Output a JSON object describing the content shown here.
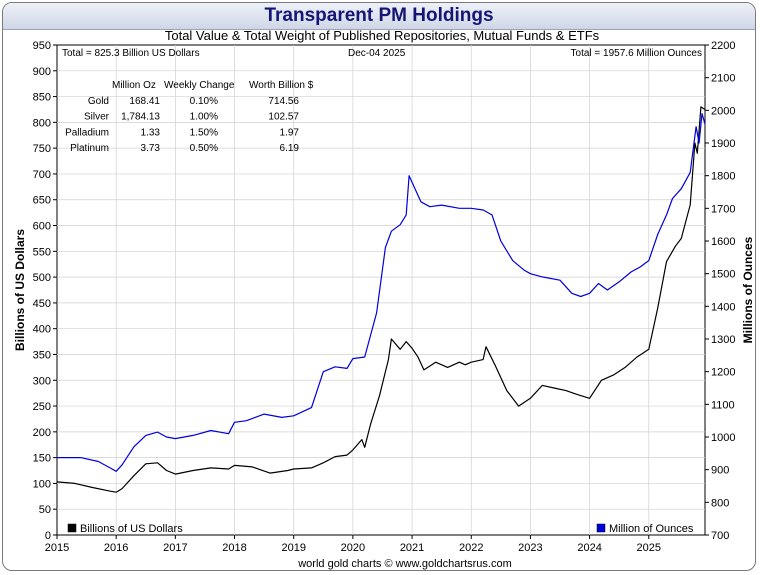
{
  "chart_data": {
    "type": "line",
    "title": "Transparent PM Holdings",
    "subtitle": "Total Value & Total Weight of Published Repositories, Mutual Funds & ETFs",
    "date_label": "Dec-04  2025",
    "total_value_label": "Total = 825.3 Billion US Dollars",
    "total_weight_label": "Total = 1957.6 Million Ounces",
    "ylabel_left": "Billions of US Dollars",
    "ylabel_right": "Millions of Ounces",
    "footer": "world gold charts © www.goldchartsrus.com",
    "x_ticks": [
      "2015",
      "2016",
      "2017",
      "2018",
      "2019",
      "2020",
      "2021",
      "2022",
      "2023",
      "2024",
      "2025"
    ],
    "xlim": [
      2015,
      2025.95
    ],
    "ylim_left": [
      0,
      950
    ],
    "ylim_right": [
      700,
      2200
    ],
    "yticks_left": [
      0,
      50,
      100,
      150,
      200,
      250,
      300,
      350,
      400,
      450,
      500,
      550,
      600,
      650,
      700,
      750,
      800,
      850,
      900,
      950
    ],
    "yticks_right": [
      700,
      800,
      900,
      1000,
      1100,
      1200,
      1300,
      1400,
      1500,
      1600,
      1700,
      1800,
      1900,
      2000,
      2100,
      2200
    ],
    "grid": true,
    "legend": [
      {
        "name": "Billions of US Dollars",
        "color": "#000000",
        "position": "bottom-left"
      },
      {
        "name": "Million of Ounces",
        "color": "#0000dd",
        "position": "bottom-right"
      }
    ],
    "table": {
      "headers": [
        "",
        "Million Oz",
        "Weekly Change",
        "Worth Billion $"
      ],
      "rows": [
        [
          "Gold",
          "168.41",
          "0.10%",
          "714.56"
        ],
        [
          "Silver",
          "1,784.13",
          "1.00%",
          "102.57"
        ],
        [
          "Palladium",
          "1.33",
          "1.50%",
          "1.97"
        ],
        [
          "Platinum",
          "3.73",
          "0.50%",
          "6.19"
        ]
      ]
    },
    "series": [
      {
        "name": "Billions of US Dollars",
        "color": "#000000",
        "axis": "left",
        "points": [
          [
            2015,
            103
          ],
          [
            2015.3,
            100
          ],
          [
            2015.6,
            92
          ],
          [
            2015.9,
            85
          ],
          [
            2016,
            83
          ],
          [
            2016.1,
            90
          ],
          [
            2016.3,
            115
          ],
          [
            2016.5,
            138
          ],
          [
            2016.7,
            140
          ],
          [
            2016.85,
            125
          ],
          [
            2017,
            118
          ],
          [
            2017.3,
            125
          ],
          [
            2017.6,
            130
          ],
          [
            2017.9,
            128
          ],
          [
            2018,
            135
          ],
          [
            2018.3,
            132
          ],
          [
            2018.6,
            120
          ],
          [
            2018.9,
            125
          ],
          [
            2019,
            128
          ],
          [
            2019.3,
            130
          ],
          [
            2019.5,
            140
          ],
          [
            2019.7,
            152
          ],
          [
            2019.9,
            155
          ],
          [
            2020,
            165
          ],
          [
            2020.15,
            185
          ],
          [
            2020.2,
            170
          ],
          [
            2020.3,
            215
          ],
          [
            2020.45,
            270
          ],
          [
            2020.6,
            340
          ],
          [
            2020.65,
            380
          ],
          [
            2020.8,
            360
          ],
          [
            2020.9,
            375
          ],
          [
            2021,
            362
          ],
          [
            2021.1,
            345
          ],
          [
            2021.2,
            320
          ],
          [
            2021.4,
            335
          ],
          [
            2021.6,
            325
          ],
          [
            2021.8,
            335
          ],
          [
            2021.9,
            330
          ],
          [
            2022,
            335
          ],
          [
            2022.2,
            340
          ],
          [
            2022.25,
            365
          ],
          [
            2022.4,
            330
          ],
          [
            2022.6,
            280
          ],
          [
            2022.8,
            250
          ],
          [
            2023,
            265
          ],
          [
            2023.2,
            290
          ],
          [
            2023.4,
            285
          ],
          [
            2023.6,
            280
          ],
          [
            2023.8,
            272
          ],
          [
            2024,
            265
          ],
          [
            2024.2,
            300
          ],
          [
            2024.4,
            310
          ],
          [
            2024.6,
            325
          ],
          [
            2024.8,
            345
          ],
          [
            2025,
            360
          ],
          [
            2025.15,
            440
          ],
          [
            2025.3,
            530
          ],
          [
            2025.45,
            560
          ],
          [
            2025.55,
            575
          ],
          [
            2025.7,
            640
          ],
          [
            2025.78,
            760
          ],
          [
            2025.82,
            740
          ],
          [
            2025.88,
            830
          ],
          [
            2025.95,
            825
          ]
        ]
      },
      {
        "name": "Million of Ounces",
        "color": "#0000dd",
        "axis": "right",
        "points": [
          [
            2015,
            937
          ],
          [
            2015.4,
            937
          ],
          [
            2015.7,
            925
          ],
          [
            2015.9,
            905
          ],
          [
            2016,
            895
          ],
          [
            2016.1,
            915
          ],
          [
            2016.3,
            970
          ],
          [
            2016.5,
            1005
          ],
          [
            2016.7,
            1015
          ],
          [
            2016.85,
            1000
          ],
          [
            2017,
            995
          ],
          [
            2017.3,
            1005
          ],
          [
            2017.6,
            1020
          ],
          [
            2017.9,
            1010
          ],
          [
            2018,
            1045
          ],
          [
            2018.2,
            1050
          ],
          [
            2018.5,
            1070
          ],
          [
            2018.8,
            1060
          ],
          [
            2019,
            1065
          ],
          [
            2019.3,
            1090
          ],
          [
            2019.5,
            1200
          ],
          [
            2019.7,
            1215
          ],
          [
            2019.9,
            1210
          ],
          [
            2020,
            1240
          ],
          [
            2020.2,
            1245
          ],
          [
            2020.4,
            1380
          ],
          [
            2020.55,
            1580
          ],
          [
            2020.65,
            1630
          ],
          [
            2020.8,
            1650
          ],
          [
            2020.9,
            1680
          ],
          [
            2020.95,
            1800
          ],
          [
            2021.05,
            1760
          ],
          [
            2021.15,
            1720
          ],
          [
            2021.3,
            1705
          ],
          [
            2021.5,
            1710
          ],
          [
            2021.8,
            1700
          ],
          [
            2022,
            1700
          ],
          [
            2022.2,
            1695
          ],
          [
            2022.35,
            1680
          ],
          [
            2022.5,
            1600
          ],
          [
            2022.7,
            1540
          ],
          [
            2022.9,
            1510
          ],
          [
            2023,
            1500
          ],
          [
            2023.2,
            1490
          ],
          [
            2023.5,
            1480
          ],
          [
            2023.7,
            1440
          ],
          [
            2023.85,
            1430
          ],
          [
            2024,
            1440
          ],
          [
            2024.15,
            1470
          ],
          [
            2024.3,
            1450
          ],
          [
            2024.5,
            1475
          ],
          [
            2024.7,
            1505
          ],
          [
            2024.85,
            1520
          ],
          [
            2025,
            1540
          ],
          [
            2025.15,
            1620
          ],
          [
            2025.3,
            1680
          ],
          [
            2025.4,
            1730
          ],
          [
            2025.55,
            1760
          ],
          [
            2025.7,
            1810
          ],
          [
            2025.8,
            1950
          ],
          [
            2025.85,
            1900
          ],
          [
            2025.9,
            1990
          ],
          [
            2025.95,
            1957.6
          ]
        ]
      }
    ]
  }
}
